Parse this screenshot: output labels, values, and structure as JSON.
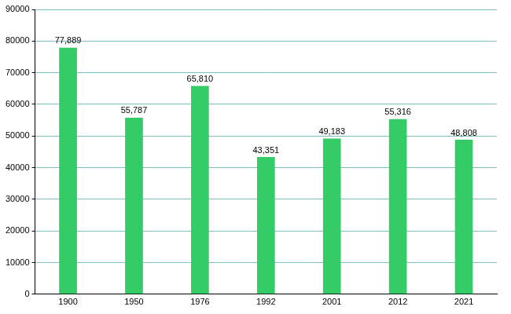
{
  "chart_data": {
    "type": "bar",
    "categories": [
      "1900",
      "1950",
      "1976",
      "1992",
      "2001",
      "2012",
      "2021"
    ],
    "values": [
      77889,
      55787,
      65810,
      43351,
      49183,
      55316,
      48808
    ],
    "value_labels": [
      "77,889",
      "55,787",
      "65,810",
      "43,351",
      "49,183",
      "55,316",
      "48,808"
    ],
    "data_labels": true,
    "color": "#33cc66",
    "ylim": [
      0,
      90000
    ],
    "yticks": [
      0,
      10000,
      20000,
      30000,
      40000,
      50000,
      60000,
      70000,
      80000,
      90000
    ],
    "grid": true
  }
}
